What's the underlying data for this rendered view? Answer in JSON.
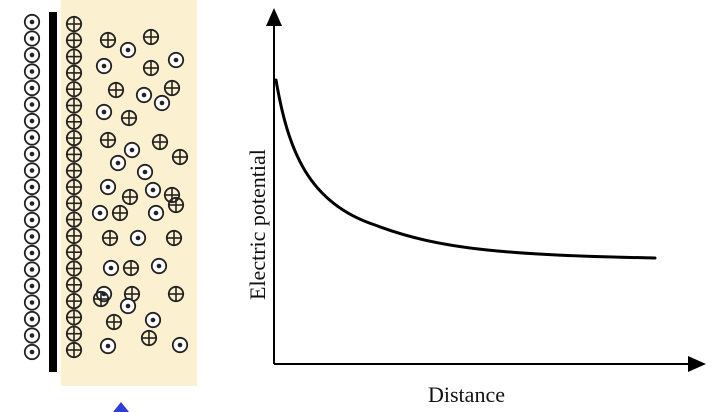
{
  "diagram": {
    "y_axis_label": "Electric potential",
    "x_axis_label": "Distance",
    "colors": {
      "solution_band": "#fbf0cf",
      "electrode": "#000000",
      "ion_stroke": "#222222",
      "curve": "#000000",
      "axes": "#000000",
      "corner_marker": "#2f3fd6"
    },
    "icons": {
      "anion": "circled-dot",
      "cation": "circled-plus",
      "electrode": "vertical-bar",
      "corner_marker": "blue-arrowhead"
    }
  }
}
